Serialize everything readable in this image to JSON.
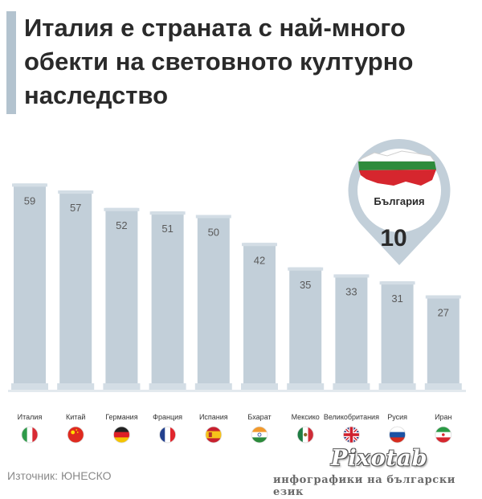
{
  "title": "Италия е страната с най-много обекти на световното културно наследство",
  "source": "Източник: ЮНЕСКО",
  "brand": {
    "name": "Pixotab",
    "tagline": "инфографики на български език"
  },
  "colors": {
    "bar": "#c2cfd9",
    "bar_top": "#d3dde5",
    "text": "#5a5a5a",
    "pin": "#c2cfd9"
  },
  "chart_data": {
    "type": "bar",
    "categories": [
      "Италия",
      "Китай",
      "Германия",
      "Франция",
      "Испания",
      "Бхарат",
      "Мексико",
      "Великобритания",
      "Русия",
      "Иран"
    ],
    "values": [
      59,
      57,
      52,
      51,
      50,
      42,
      35,
      33,
      31,
      27
    ],
    "flags": [
      "italy-flag",
      "china-flag",
      "germany-flag",
      "france-flag",
      "spain-flag",
      "india-flag",
      "mexico-flag",
      "uk-flag",
      "russia-flag",
      "iran-flag"
    ],
    "ylim": [
      0,
      60
    ],
    "grid": false,
    "legend": "none",
    "callout": {
      "label": "България",
      "value": 10,
      "icon": "bulgaria-map-icon"
    }
  }
}
